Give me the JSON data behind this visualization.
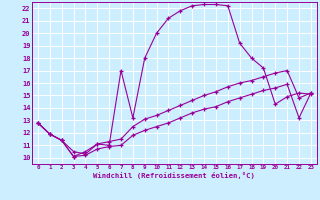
{
  "xlabel": "Windchill (Refroidissement éolien,°C)",
  "bg_color": "#cceeff",
  "line_color": "#990099",
  "grid_color": "#ffffff",
  "xlim": [
    -0.5,
    23.5
  ],
  "ylim": [
    9.5,
    22.5
  ],
  "xticks": [
    0,
    1,
    2,
    3,
    4,
    5,
    6,
    7,
    8,
    9,
    10,
    11,
    12,
    13,
    14,
    15,
    16,
    17,
    18,
    19,
    20,
    21,
    22,
    23
  ],
  "yticks": [
    10,
    11,
    12,
    13,
    14,
    15,
    16,
    17,
    18,
    19,
    20,
    21,
    22
  ],
  "line1_x": [
    0,
    1,
    2,
    3,
    4,
    5,
    6,
    7,
    8,
    9,
    10,
    11,
    12,
    13,
    14,
    15,
    16,
    17,
    18,
    19,
    20,
    21,
    22,
    23
  ],
  "line1_y": [
    12.8,
    11.9,
    11.4,
    10.1,
    10.5,
    11.1,
    11.0,
    17.0,
    13.2,
    18.0,
    20.0,
    21.2,
    21.8,
    22.2,
    22.3,
    22.3,
    22.2,
    19.2,
    18.0,
    17.2,
    14.3,
    14.9,
    15.2,
    15.1
  ],
  "line2_x": [
    0,
    1,
    2,
    3,
    4,
    5,
    6,
    7,
    8,
    9,
    10,
    11,
    12,
    13,
    14,
    15,
    16,
    17,
    18,
    19,
    20,
    21,
    22,
    23
  ],
  "line2_y": [
    12.8,
    11.9,
    11.4,
    10.5,
    10.3,
    11.1,
    11.3,
    11.5,
    12.5,
    13.1,
    13.4,
    13.8,
    14.2,
    14.6,
    15.0,
    15.3,
    15.7,
    16.0,
    16.2,
    16.5,
    16.8,
    17.0,
    14.8,
    15.2
  ],
  "line3_x": [
    0,
    1,
    2,
    3,
    4,
    5,
    6,
    7,
    8,
    9,
    10,
    11,
    12,
    13,
    14,
    15,
    16,
    17,
    18,
    19,
    20,
    21,
    22,
    23
  ],
  "line3_y": [
    12.8,
    11.9,
    11.4,
    10.1,
    10.2,
    10.7,
    10.9,
    11.0,
    11.8,
    12.2,
    12.5,
    12.8,
    13.2,
    13.6,
    13.9,
    14.1,
    14.5,
    14.8,
    15.1,
    15.4,
    15.6,
    15.9,
    13.2,
    15.2
  ]
}
